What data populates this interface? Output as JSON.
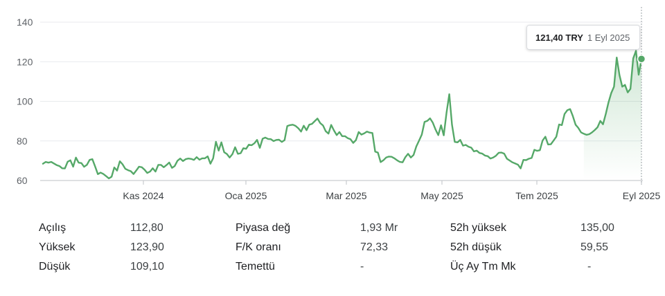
{
  "chart_data": {
    "type": "line",
    "title": "",
    "xlabel": "",
    "ylabel": "",
    "ylim": [
      60,
      140
    ],
    "yticks": [
      "60",
      "80",
      "100",
      "120",
      "140"
    ],
    "xtick_labels": [
      "Kas 2024",
      "Oca 2025",
      "Mar 2025",
      "May 2025",
      "Tem 2025",
      "Eyl 2025"
    ],
    "grid": true,
    "line_color": "#55a868",
    "series": [
      {
        "values": [
          68.5,
          69.4,
          69.0,
          69.4,
          68.6,
          67.8,
          67.3,
          66.2,
          66.1,
          69.5,
          70.2,
          67.0,
          71.6,
          69.0,
          68.8,
          66.9,
          67.9,
          70.4,
          70.8,
          67.1,
          63.2,
          64.0,
          63.3,
          62.2,
          61.1,
          61.9,
          66.6,
          65.0,
          69.7,
          68.2,
          65.9,
          65.2,
          64.7,
          63.3,
          65.1,
          67.0,
          66.7,
          65.5,
          63.8,
          64.5,
          66.2,
          64.5,
          67.9,
          67.9,
          66.7,
          67.8,
          69.1,
          66.4,
          67.3,
          70.0,
          71.1,
          69.8,
          70.8,
          71.1,
          70.9,
          70.4,
          71.8,
          70.5,
          71.2,
          71.2,
          72.2,
          68.5,
          71.2,
          79.6,
          75.1,
          79.3,
          74.3,
          73.4,
          71.6,
          73.3,
          76.8,
          73.5,
          73.8,
          76.3,
          76.0,
          78.1,
          77.8,
          78.8,
          80.5,
          76.5,
          81.1,
          81.7,
          81.0,
          80.9,
          79.9,
          80.5,
          80.6,
          79.5,
          80.4,
          87.5,
          88.0,
          88.2,
          87.6,
          86.4,
          84.7,
          87.7,
          85.4,
          88.2,
          88.6,
          90.0,
          91.3,
          89.0,
          87.8,
          84.9,
          83.7,
          88.1,
          85.3,
          82.9,
          84.5,
          82.4,
          82.4,
          81.4,
          80.9,
          79.0,
          80.4,
          84.5,
          83.2,
          83.8,
          84.7,
          84.2,
          84.0,
          74.6,
          74.1,
          69.3,
          70.2,
          71.6,
          72.1,
          72.0,
          71.2,
          70.2,
          69.4,
          69.2,
          71.8,
          73.5,
          71.6,
          72.9,
          77.2,
          80.2,
          83.2,
          89.6,
          90.1,
          91.4,
          89.2,
          85.7,
          82.9,
          87.9,
          82.8,
          94.2,
          103.6,
          88.2,
          79.5,
          79.3,
          80.5,
          77.6,
          78.0,
          77.1,
          76.6,
          74.7,
          75.1,
          73.9,
          73.6,
          72.6,
          72.3,
          71.1,
          71.6,
          72.5,
          74.0,
          74.1,
          73.6,
          71.0,
          70.1,
          69.2,
          68.6,
          68.0,
          66.1,
          70.4,
          70.3,
          71.0,
          71.4,
          75.5,
          75.0,
          75.3,
          80.2,
          82.1,
          78.2,
          78.3,
          80.2,
          82.1,
          88.3,
          88.0,
          93.6,
          95.5,
          96.1,
          92.6,
          88.2,
          86.6,
          84.3,
          83.6,
          83.1,
          83.4,
          84.3,
          85.5,
          86.9,
          90.1,
          88.4,
          93.6,
          99.4,
          104.2,
          107.4,
          122.1,
          113.2,
          107.4,
          108.3,
          104.5,
          106.3,
          121.7,
          125.5,
          113.4,
          121.4
        ]
      }
    ]
  },
  "tooltip": {
    "price": "121,40 TRY",
    "date": "1 Eyl 2025"
  },
  "stats": [
    [
      {
        "label": "Açılış",
        "value": "112,80"
      },
      {
        "label": "Piyasa değ",
        "value": "1,93 Mr"
      },
      {
        "label": "52h yüksek",
        "value": "135,00"
      }
    ],
    [
      {
        "label": "Yüksek",
        "value": "123,90"
      },
      {
        "label": "F/K oranı",
        "value": "72,33"
      },
      {
        "label": "52h düşük",
        "value": "59,55"
      }
    ],
    [
      {
        "label": "Düşük",
        "value": "109,10"
      },
      {
        "label": "Temettü",
        "value": "-"
      },
      {
        "label": "Üç Ay Tm Mk",
        "value": "-"
      }
    ]
  ]
}
